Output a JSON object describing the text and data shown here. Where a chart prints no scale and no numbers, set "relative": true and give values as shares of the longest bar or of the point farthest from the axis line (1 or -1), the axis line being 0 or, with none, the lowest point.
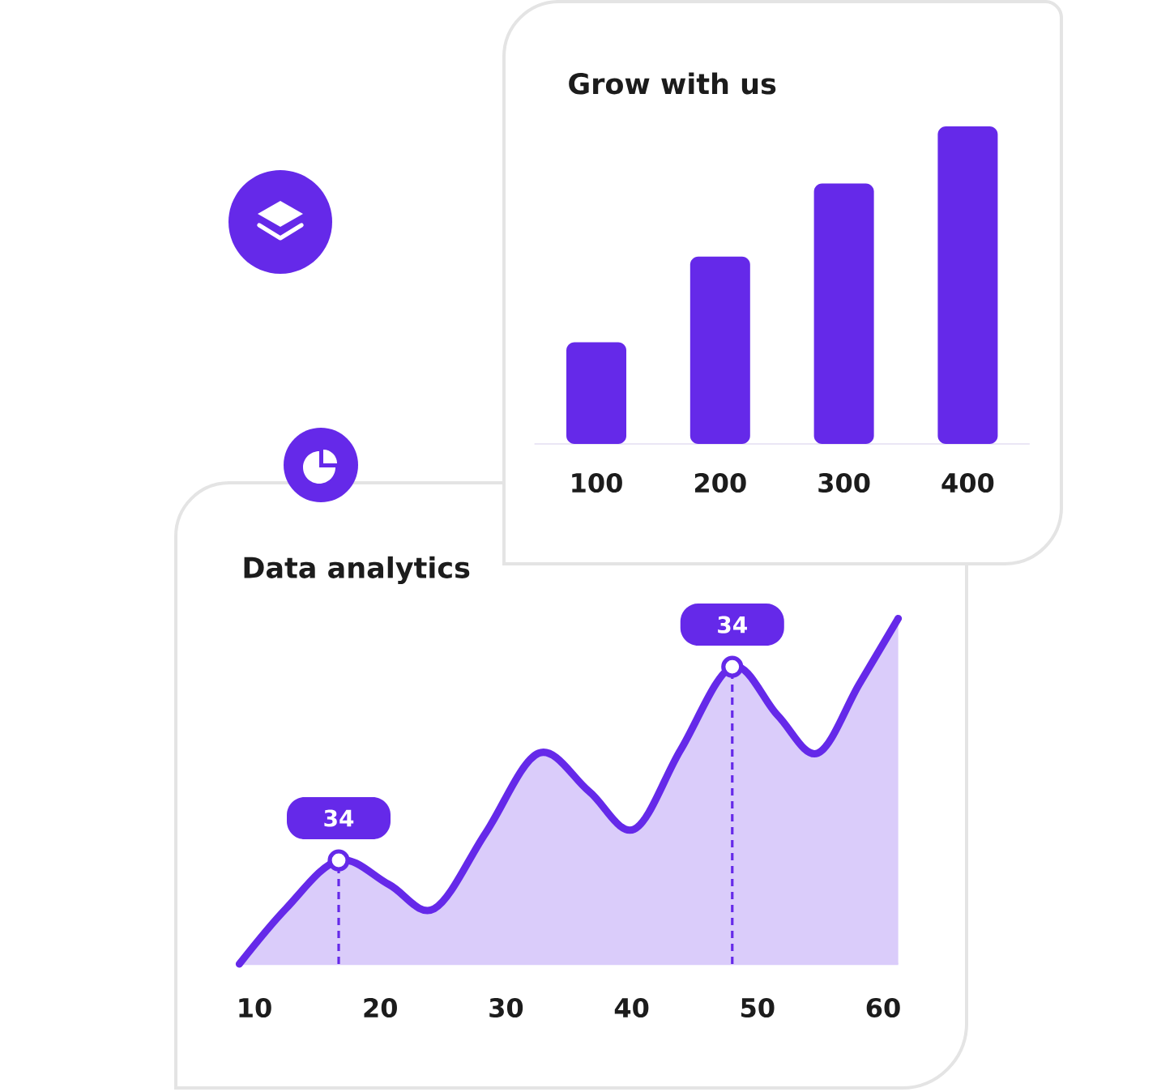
{
  "chart_data": [
    {
      "type": "bar",
      "title": "Grow with us",
      "categories": [
        "100",
        "200",
        "300",
        "400"
      ],
      "values": [
        0.32,
        0.59,
        0.82,
        1
      ],
      "color": "#6529e9",
      "relative": true
    },
    {
      "type": "area",
      "title": "Data analytics",
      "x": [
        8.8,
        12.5,
        16.7,
        20.7,
        24.3,
        28.4,
        32.6,
        36.6,
        40.2,
        43.9,
        48,
        51.6,
        54.8,
        58.1,
        61.2
      ],
      "values": [
        0,
        0.16,
        0.3,
        0.23,
        0.16,
        0.38,
        0.61,
        0.5,
        0.39,
        0.62,
        0.86,
        0.72,
        0.61,
        0.81,
        1
      ],
      "color": "#6529e9",
      "relative": true,
      "xlim": [
        8.8,
        61.2
      ],
      "xticks": [
        10,
        20,
        30,
        40,
        50,
        60
      ],
      "ref_lines": [
        {
          "axis": "x",
          "value": 16.7,
          "color": "#6529e9",
          "line_style": "dashed"
        },
        {
          "axis": "x",
          "value": 48,
          "color": "#6529e9",
          "line_style": "dashed"
        }
      ],
      "annotations": [
        {
          "text": "34",
          "x": 16.7,
          "y": 0.3
        },
        {
          "text": "34",
          "x": 48,
          "y": 0.86
        }
      ]
    }
  ]
}
